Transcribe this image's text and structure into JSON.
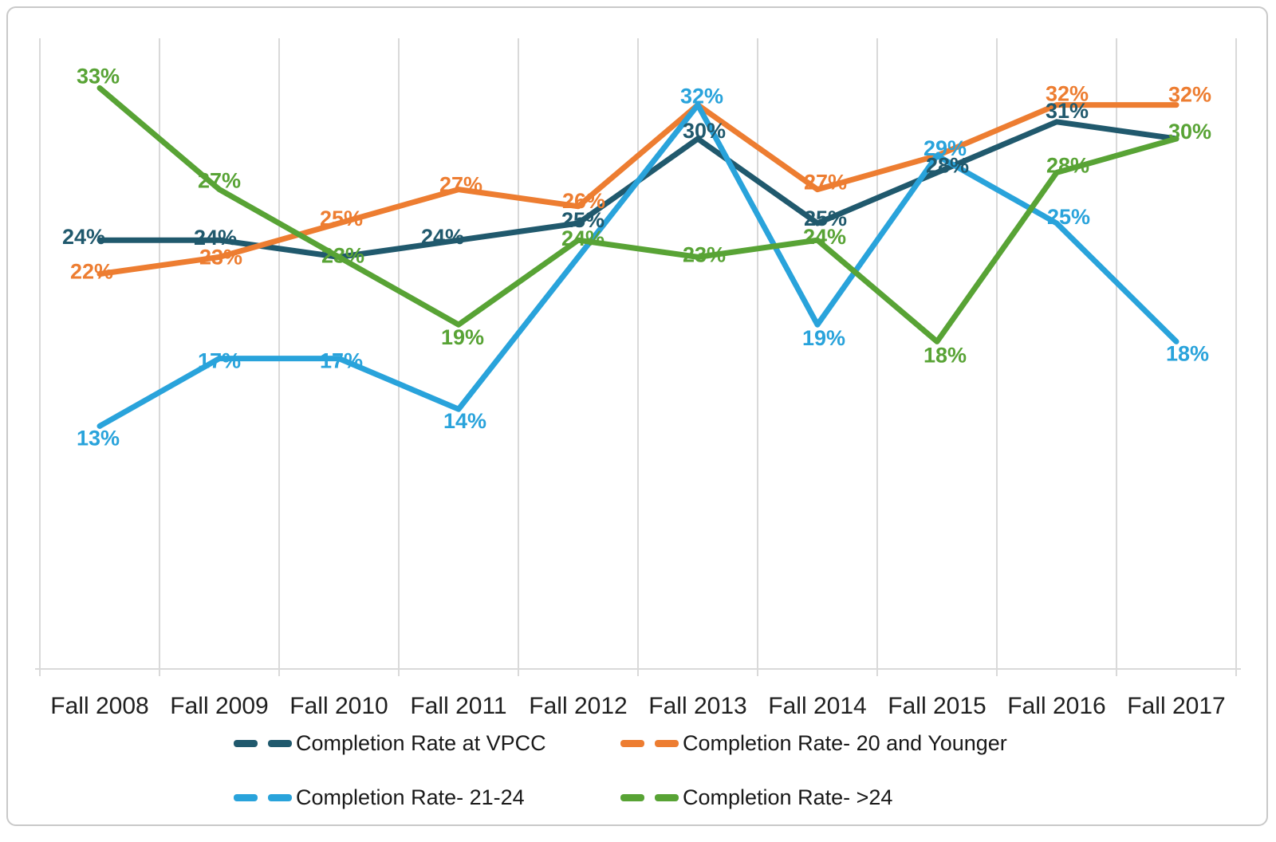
{
  "chart_data": {
    "type": "line",
    "title": "",
    "xlabel": "",
    "ylabel": "",
    "ylim": [
      0,
      36
    ],
    "grid": "vertical-only",
    "legend_position": "bottom",
    "categories": [
      "Fall 2008",
      "Fall 2009",
      "Fall 2010",
      "Fall 2011",
      "Fall 2012",
      "Fall 2013",
      "Fall 2014",
      "Fall 2015",
      "Fall 2016",
      "Fall 2017"
    ],
    "series": [
      {
        "name": "Completion Rate at VPCC",
        "color": "#20596D",
        "values": [
          24,
          24,
          23,
          24,
          25,
          30,
          25,
          28,
          31,
          30
        ],
        "labels": [
          "24%",
          "24%",
          null,
          "24%",
          "25%",
          "30%",
          "25%",
          "28%",
          "31%",
          null
        ],
        "label_offsets": [
          [
            -20,
            -4
          ],
          [
            -5,
            -3
          ],
          null,
          [
            -20,
            -4
          ],
          [
            6,
            -4
          ],
          [
            8,
            -10
          ],
          [
            10,
            -6
          ],
          [
            13,
            -9
          ],
          [
            13,
            -14
          ],
          null
        ]
      },
      {
        "name": "Completion Rate- 20 and Younger",
        "color": "#ED7D31",
        "values": [
          22,
          23,
          25,
          27,
          26,
          32,
          27,
          29,
          32,
          32
        ],
        "labels": [
          "22%",
          "23%",
          "25%",
          "27%",
          "26%",
          null,
          "27%",
          null,
          "32%",
          "32%"
        ],
        "label_offsets": [
          [
            -10,
            -3
          ],
          [
            2,
            0
          ],
          [
            3,
            -6
          ],
          [
            3,
            -6
          ],
          [
            7,
            -7
          ],
          null,
          [
            10,
            -9
          ],
          null,
          [
            13,
            -14
          ],
          [
            17,
            -13
          ]
        ]
      },
      {
        "name": "Completion Rate- 21-24",
        "color": "#29A3DB",
        "values": [
          13,
          17,
          17,
          14,
          23,
          32,
          19,
          29,
          25,
          18
        ],
        "labels": [
          "13%",
          "17%",
          "17%",
          "14%",
          null,
          "32%",
          "19%",
          "29%",
          "25%",
          "18%"
        ],
        "label_offsets": [
          [
            -2,
            15
          ],
          [
            0,
            3
          ],
          [
            3,
            3
          ],
          [
            8,
            15
          ],
          null,
          [
            5,
            -11
          ],
          [
            8,
            17
          ],
          [
            10,
            -9
          ],
          [
            15,
            -8
          ],
          [
            14,
            15
          ]
        ]
      },
      {
        "name": "Completion Rate- >24",
        "color": "#58A335",
        "values": [
          33,
          27,
          23,
          19,
          24,
          23,
          24,
          18,
          28,
          30
        ],
        "labels": [
          "33%",
          "27%",
          "23%",
          "19%",
          "24%",
          "23%",
          "24%",
          "18%",
          "28%",
          "30%"
        ],
        "label_offsets": [
          [
            -2,
            -15
          ],
          [
            0,
            -11
          ],
          [
            5,
            -2
          ],
          [
            5,
            16
          ],
          [
            6,
            -2
          ],
          [
            8,
            -3
          ],
          [
            9,
            -4
          ],
          [
            10,
            17
          ],
          [
            14,
            -9
          ],
          [
            17,
            -9
          ]
        ]
      }
    ]
  },
  "style": {
    "gridline_color": "#d9d9d9",
    "axis_text_color": "#1f1f1f"
  }
}
